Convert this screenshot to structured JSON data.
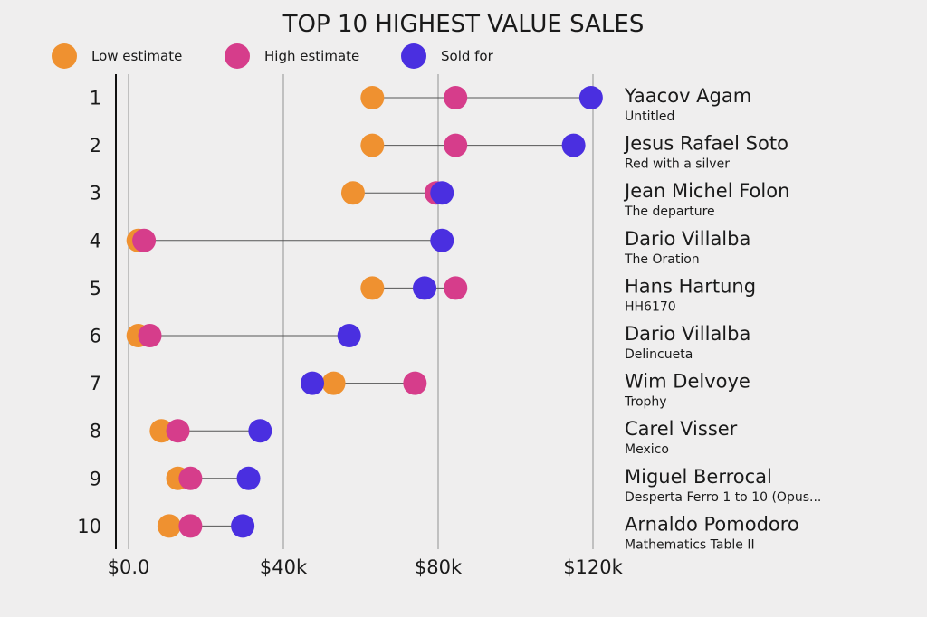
{
  "chart_data": {
    "type": "dot-range",
    "title": "TOP 10 HIGHEST VALUE SALES",
    "legend": [
      {
        "key": "low",
        "label": "Low estimate",
        "color": "#ef9130"
      },
      {
        "key": "high",
        "label": "High estimate",
        "color": "#d63d8b"
      },
      {
        "key": "sold",
        "label": "Sold for",
        "color": "#4a2fe0"
      }
    ],
    "x_ticks": [
      {
        "value": 0,
        "label": "$0.0"
      },
      {
        "value": 40000,
        "label": "$40k"
      },
      {
        "value": 80000,
        "label": "$80k"
      },
      {
        "value": 120000,
        "label": "$120k"
      }
    ],
    "xlim": [
      -3000,
      122000
    ],
    "grid": true,
    "rows": [
      {
        "rank": "1",
        "artist": "Yaacov Agam",
        "artwork": "Untitled",
        "low": 63000,
        "high": 84500,
        "sold": 119500
      },
      {
        "rank": "2",
        "artist": "Jesus Rafael Soto",
        "artwork": "Red with a silver",
        "low": 63000,
        "high": 84500,
        "sold": 115000
      },
      {
        "rank": "3",
        "artist": "Jean Michel Folon",
        "artwork": "The departure",
        "low": 58000,
        "high": 79500,
        "sold": 81000
      },
      {
        "rank": "4",
        "artist": "Dario Villalba",
        "artwork": "The Oration",
        "low": 2500,
        "high": 4000,
        "sold": 81000
      },
      {
        "rank": "5",
        "artist": "Hans Hartung",
        "artwork": "HH6170",
        "low": 63000,
        "high": 84500,
        "sold": 76500
      },
      {
        "rank": "6",
        "artist": "Dario Villalba",
        "artwork": "Delincueta",
        "low": 2500,
        "high": 5500,
        "sold": 57000
      },
      {
        "rank": "7",
        "artist": "Wim Delvoye",
        "artwork": "Trophy",
        "low": 53000,
        "high": 74000,
        "sold": 47500
      },
      {
        "rank": "8",
        "artist": "Carel Visser",
        "artwork": "Mexico",
        "low": 8500,
        "high": 12750,
        "sold": 34000
      },
      {
        "rank": "9",
        "artist": "Miguel Berrocal",
        "artwork": "Desperta Ferro 1 to 10 (Opus...",
        "low": 12750,
        "high": 16000,
        "sold": 31000
      },
      {
        "rank": "10",
        "artist": "Arnaldo Pomodoro",
        "artwork": "Mathematics Table II",
        "low": 10500,
        "high": 16000,
        "sold": 29500
      }
    ]
  }
}
